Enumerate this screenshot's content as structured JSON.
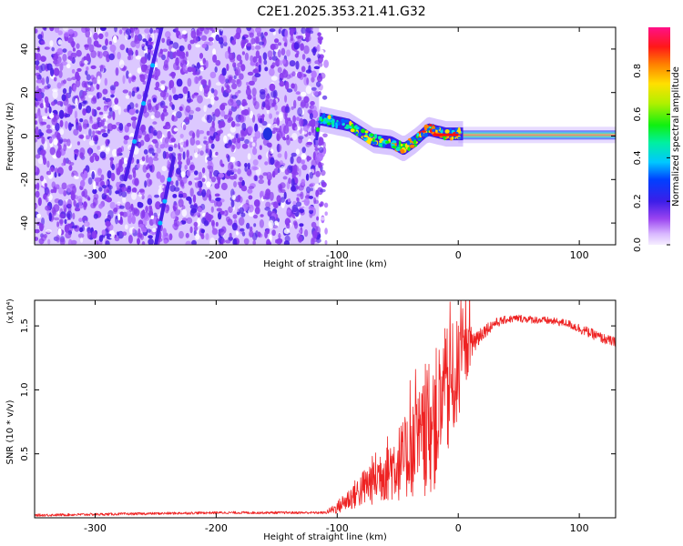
{
  "title": "C2E1.2025.353.21.41.G32",
  "colors": {
    "snr_line": "#ee2222",
    "heat_bg": "#dcc8ff",
    "heat_noise": "#8a3cf0",
    "heat_dense": "#4b1de8",
    "beam": "#ff1010"
  },
  "chart_data": [
    {
      "type": "heatmap",
      "name": "spectrogram",
      "title": "C2E1.2025.353.21.41.G32",
      "xlabel": "Height of straight line (km)",
      "ylabel": "Frequency (Hz)",
      "xlim": [
        -350,
        130
      ],
      "ylim": [
        -50,
        50
      ],
      "xticks": [
        -300,
        -200,
        -100,
        0,
        100
      ],
      "yticks": [
        -40,
        -20,
        0,
        20,
        40
      ],
      "colorbar": {
        "label": "Normalized spectral amplitude",
        "range": [
          0,
          1
        ],
        "ticks": [
          "0.0",
          "0.2",
          "0.4",
          "0.6",
          "0.8"
        ]
      },
      "features": {
        "noise_region_x": [
          -350,
          -115
        ],
        "streak_1": [
          [
            -275,
            -20
          ],
          [
            -245,
            50
          ]
        ],
        "streak_2": [
          [
            -250,
            -50
          ],
          [
            -235,
            -10
          ]
        ],
        "blob_x": [
          -160,
          -155
        ],
        "turbulent_track": [
          [
            -115,
            8
          ],
          [
            -90,
            5
          ],
          [
            -70,
            -2
          ],
          [
            -55,
            -3
          ],
          [
            -45,
            -6
          ],
          [
            -35,
            -2
          ],
          [
            -25,
            3
          ],
          [
            -10,
            1
          ],
          [
            0,
            1
          ]
        ],
        "steady_beam": [
          [
            0,
            0.5
          ],
          [
            130,
            0.5
          ]
        ]
      }
    },
    {
      "type": "line",
      "name": "snr",
      "xlabel": "Height of straight line (km)",
      "ylabel": "SNR (10 * v/v)",
      "y_scale_label": "(x10⁴)",
      "xlim": [
        -350,
        130
      ],
      "ylim": [
        0,
        1.7
      ],
      "xticks": [
        -300,
        -200,
        -100,
        0,
        100
      ],
      "yticks": [
        "0.5",
        "1.0",
        "1.5"
      ],
      "envelope": {
        "x": [
          -350,
          -200,
          -110,
          -100,
          -80,
          -60,
          -45,
          -30,
          -20,
          -10,
          0,
          10,
          20,
          30,
          40,
          50,
          60,
          75,
          90,
          100,
          110,
          120,
          130
        ],
        "y": [
          0.02,
          0.04,
          0.04,
          0.08,
          0.22,
          0.38,
          0.45,
          0.6,
          0.75,
          0.95,
          1.15,
          1.35,
          1.45,
          1.52,
          1.55,
          1.56,
          1.55,
          1.54,
          1.52,
          1.48,
          1.44,
          1.4,
          1.37
        ],
        "noise": [
          0.01,
          0.01,
          0.01,
          0.05,
          0.14,
          0.26,
          0.32,
          0.45,
          0.55,
          0.55,
          0.4,
          0.15,
          0.06,
          0.04,
          0.03,
          0.03,
          0.03,
          0.03,
          0.03,
          0.04,
          0.04,
          0.04,
          0.04
        ]
      }
    }
  ]
}
